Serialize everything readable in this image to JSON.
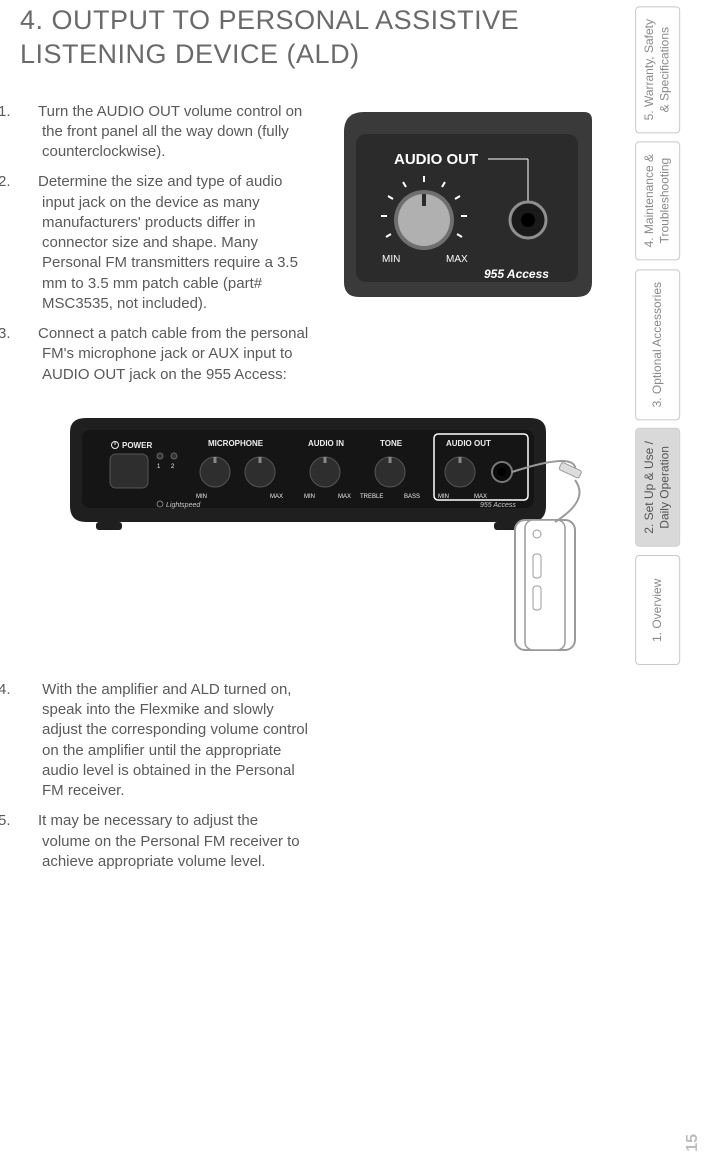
{
  "title": "4. OUTPUT TO PERSONAL ASSISTIVE LISTENING DEVICE (ALD)",
  "steps_a": [
    {
      "n": "1.",
      "t": "Turn the AUDIO OUT volume control on the front panel all the way down (fully counterclockwise)."
    },
    {
      "n": "2.",
      "t": "Determine the size and type of audio input jack on the device as many manufacturers' products differ in connector size and shape. Many Personal FM transmitters require a 3.5 mm to 3.5 mm patch cable (part# MSC3535, not included)."
    },
    {
      "n": "3.",
      "t": "Connect a patch cable from the personal FM's microphone jack or AUX input to AUDIO OUT jack on the 955 Access:"
    }
  ],
  "steps_b": [
    {
      "n": "4.",
      "t": " With the amplifier and ALD turned on, speak into the Flexmike and slowly adjust the corresponding volume control on the amplifier until the appropriate audio level is obtained in the Personal FM receiver."
    },
    {
      "n": "5.",
      "t": "It may be necessary to adjust the volume on the Personal FM receiver to achieve appropriate volume level."
    }
  ],
  "fig1": {
    "label_audio_out": "AUDIO OUT",
    "label_min": "MIN",
    "label_max": "MAX",
    "brand": "955 Access",
    "colors": {
      "body": "#3a3a3a",
      "face": "#2b2b2b",
      "knob": "#b0b0b0",
      "knob_edge": "#6f6f6f",
      "text": "#ffffff",
      "jack_ring": "#8f8f8f"
    }
  },
  "fig2": {
    "labels": {
      "power": "POWER",
      "microphone": "MICROPHONE",
      "audio_in": "AUDIO IN",
      "tone": "TONE",
      "audio_out": "AUDIO OUT",
      "min": "MIN",
      "max": "MAX",
      "treble": "TREBLE",
      "bass": "BASS",
      "one": "1",
      "two": "2",
      "brand_left": "Lightspeed",
      "brand_right": "955 Access"
    },
    "colors": {
      "body": "#1f1f1f",
      "face": "#151515",
      "knob": "#2e2e2e",
      "knob_hi": "#555555",
      "text": "#eeeeee",
      "outline": "#9a9a9a",
      "highlight_box": "#ffffff",
      "fm_body": "#ffffff",
      "fm_stroke": "#9a9a9a"
    }
  },
  "tabs": [
    {
      "label": "1. Overview",
      "active": false
    },
    {
      "label": "2. Set Up & Use /\nDaily Operation",
      "active": true
    },
    {
      "label": "3. Optional Accessories",
      "active": false
    },
    {
      "label": "4. Maintenance &\nTroubleshooting",
      "active": false
    },
    {
      "label": "5. Warranty, Safety\n& Specifications",
      "active": false
    }
  ],
  "page_number": "15"
}
